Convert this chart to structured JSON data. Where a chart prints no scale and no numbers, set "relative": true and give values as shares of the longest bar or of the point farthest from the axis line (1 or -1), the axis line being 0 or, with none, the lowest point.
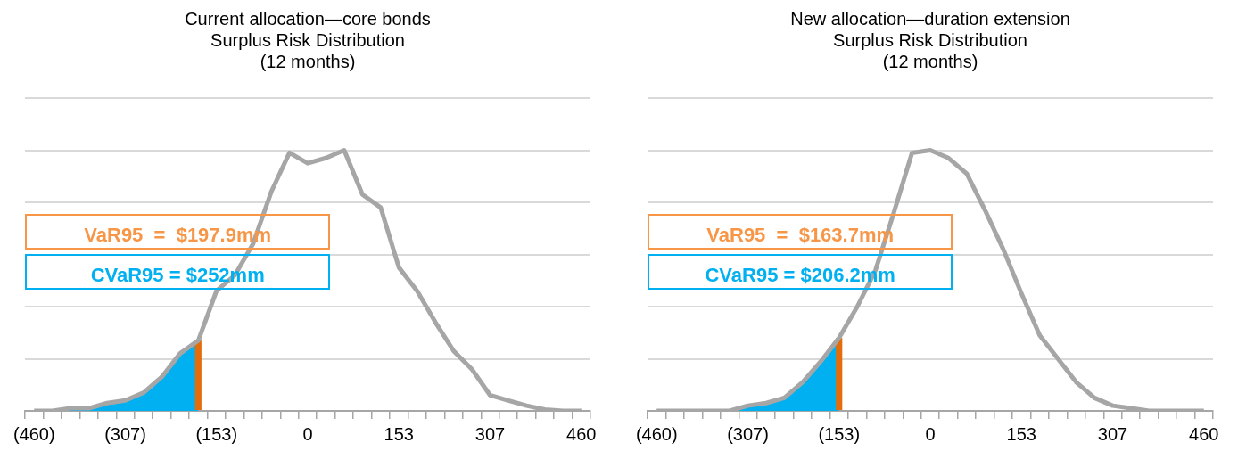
{
  "chart_data": [
    {
      "type": "line",
      "title": "Current allocation—core bonds\nSurplus Risk Distribution\n(12 months)",
      "relative": true,
      "grid": "y",
      "categories": [
        "(460)",
        null,
        null,
        null,
        null,
        "(307)",
        null,
        null,
        null,
        null,
        "(153)",
        null,
        null,
        null,
        null,
        "0",
        null,
        null,
        null,
        null,
        "153",
        null,
        null,
        null,
        null,
        "307",
        null,
        null,
        null,
        null,
        "460"
      ],
      "series": [
        {
          "type": "area",
          "color": "#00b0f0",
          "values": [
            0,
            0,
            0.01,
            0.01,
            0.03,
            0.04,
            0.07,
            0.13,
            0.22,
            0.27,
            null,
            null,
            null,
            null,
            null,
            null,
            null,
            null,
            null,
            null,
            null,
            null,
            null,
            null,
            null,
            null,
            null,
            null,
            null,
            null,
            null
          ]
        },
        {
          "color": "#a6a6a6",
          "values": [
            0,
            0,
            0.01,
            0.01,
            0.03,
            0.04,
            0.07,
            0.13,
            0.22,
            0.27,
            0.46,
            0.52,
            0.64,
            0.84,
            0.99,
            0.95,
            0.97,
            1,
            0.83,
            0.78,
            0.55,
            0.46,
            0.34,
            0.23,
            0.16,
            0.06,
            0.04,
            0.02,
            0.005,
            0,
            0
          ]
        },
        {
          "type": "bar",
          "color": "#e46c0a",
          "values": [
            null,
            null,
            null,
            null,
            null,
            null,
            null,
            null,
            null,
            0.27,
            null,
            null,
            null,
            null,
            null,
            null,
            null,
            null,
            null,
            null,
            null,
            null,
            null,
            null,
            null,
            null,
            null,
            null,
            null,
            null,
            null
          ]
        }
      ],
      "annotations": [
        "VaR95  =  $197.9mm",
        "CVaR95 = $252mm"
      ]
    },
    {
      "type": "line",
      "title": "New allocation—duration extension\nSurplus Risk Distribution\n(12 months)",
      "relative": true,
      "grid": "y",
      "categories": [
        "(460)",
        null,
        null,
        null,
        null,
        "(307)",
        null,
        null,
        null,
        null,
        "(153)",
        null,
        null,
        null,
        null,
        "0",
        null,
        null,
        null,
        null,
        "153",
        null,
        null,
        null,
        null,
        "307",
        null,
        null,
        null,
        null,
        "460"
      ],
      "series": [
        {
          "type": "area",
          "color": "#00b0f0",
          "values": [
            0,
            0,
            0,
            0,
            0,
            0.02,
            0.03,
            0.05,
            0.11,
            0.19,
            0.28,
            null,
            null,
            null,
            null,
            null,
            null,
            null,
            null,
            null,
            null,
            null,
            null,
            null,
            null,
            null,
            null,
            null,
            null,
            null,
            null
          ]
        },
        {
          "color": "#a6a6a6",
          "values": [
            0,
            0,
            0,
            0,
            0,
            0.02,
            0.03,
            0.05,
            0.11,
            0.19,
            0.28,
            0.4,
            0.54,
            0.76,
            0.99,
            1,
            0.97,
            0.91,
            0.77,
            0.62,
            0.45,
            0.29,
            0.2,
            0.11,
            0.05,
            0.02,
            0.01,
            0,
            0,
            0,
            0
          ]
        },
        {
          "type": "bar",
          "color": "#e46c0a",
          "values": [
            null,
            null,
            null,
            null,
            null,
            null,
            null,
            null,
            null,
            null,
            0.28,
            null,
            null,
            null,
            null,
            null,
            null,
            null,
            null,
            null,
            null,
            null,
            null,
            null,
            null,
            null,
            null,
            null,
            null,
            null,
            null
          ]
        }
      ],
      "annotations": [
        "VaR95  =  $163.7mm",
        "CVaR95 = $206.2mm"
      ]
    }
  ]
}
